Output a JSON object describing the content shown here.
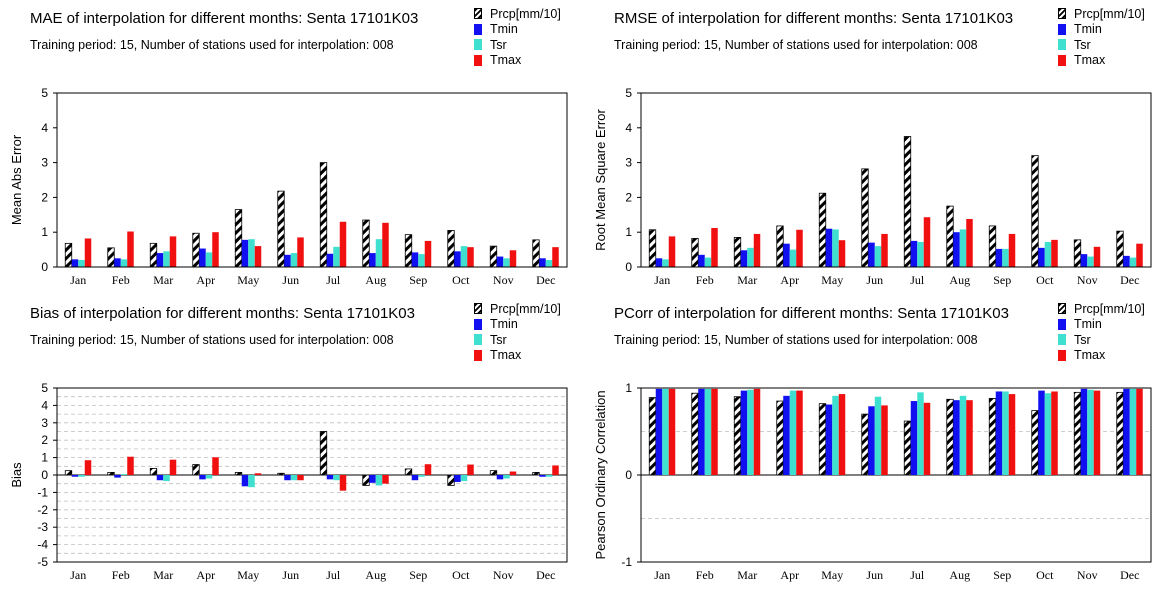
{
  "colors": {
    "Prcp[mm/10]": "hatch",
    "Tmin": "#1010f0",
    "Tsr": "#40e0d0",
    "Tmax": "#f01010"
  },
  "legend": [
    "Prcp[mm/10]",
    "Tmin",
    "Tsr",
    "Tmax"
  ],
  "chart_data": [
    {
      "type": "bar",
      "title": "MAE of interpolation for different months: Senta  17101K03",
      "subtitle": "Training period: 15, Number of stations used for interpolation: 008",
      "ylabel": "Mean Abs Error",
      "ylim": [
        0,
        5
      ],
      "yticks": [
        "0",
        "1",
        "2",
        "3",
        "4",
        "5"
      ],
      "grid": false,
      "categories": [
        "Jan",
        "Feb",
        "Mar",
        "Apr",
        "May",
        "Jun",
        "Jul",
        "Aug",
        "Sep",
        "Oct",
        "Nov",
        "Dec"
      ],
      "series": [
        {
          "name": "Prcp[mm/10]",
          "values": [
            0.68,
            0.55,
            0.68,
            0.97,
            1.65,
            2.18,
            3.0,
            1.35,
            0.93,
            1.05,
            0.6,
            0.78
          ]
        },
        {
          "name": "Tmin",
          "values": [
            0.22,
            0.25,
            0.4,
            0.53,
            0.78,
            0.35,
            0.38,
            0.4,
            0.42,
            0.45,
            0.3,
            0.25
          ]
        },
        {
          "name": "Tsr",
          "values": [
            0.2,
            0.22,
            0.45,
            0.42,
            0.8,
            0.4,
            0.58,
            0.8,
            0.37,
            0.6,
            0.25,
            0.2
          ]
        },
        {
          "name": "Tmax",
          "values": [
            0.82,
            1.02,
            0.88,
            1.0,
            0.6,
            0.85,
            1.3,
            1.27,
            0.75,
            0.57,
            0.48,
            0.57
          ]
        }
      ]
    },
    {
      "type": "bar",
      "title": "RMSE of interpolation for different months: Senta  17101K03",
      "subtitle": "Training period: 15, Number of stations used for interpolation: 008",
      "ylabel": "Root Mean Square Error",
      "ylim": [
        0,
        5
      ],
      "yticks": [
        "0",
        "1",
        "2",
        "3",
        "4",
        "5"
      ],
      "grid": false,
      "categories": [
        "Jan",
        "Feb",
        "Mar",
        "Apr",
        "May",
        "Jun",
        "Jul",
        "Aug",
        "Sep",
        "Oct",
        "Nov",
        "Dec"
      ],
      "series": [
        {
          "name": "Prcp[mm/10]",
          "values": [
            1.07,
            0.82,
            0.85,
            1.18,
            2.12,
            2.82,
            3.75,
            1.75,
            1.18,
            3.2,
            0.78,
            1.03
          ]
        },
        {
          "name": "Tmin",
          "values": [
            0.25,
            0.35,
            0.48,
            0.67,
            1.1,
            0.7,
            0.75,
            1.0,
            0.52,
            0.55,
            0.37,
            0.32
          ]
        },
        {
          "name": "Tsr",
          "values": [
            0.22,
            0.27,
            0.55,
            0.5,
            1.08,
            0.6,
            0.72,
            1.08,
            0.52,
            0.72,
            0.3,
            0.27
          ]
        },
        {
          "name": "Tmax",
          "values": [
            0.88,
            1.12,
            0.95,
            1.07,
            0.77,
            0.95,
            1.43,
            1.38,
            0.95,
            0.78,
            0.58,
            0.67
          ]
        }
      ]
    },
    {
      "type": "bar",
      "title": "Bias of interpolation for different months: Senta  17101K03",
      "subtitle": "Training period: 15, Number of stations used for interpolation: 008",
      "ylabel": "Bias",
      "ylim": [
        -5,
        5
      ],
      "yticks": [
        "-5",
        "-4",
        "-3",
        "-2",
        "-1",
        "0",
        "1",
        "2",
        "3",
        "4",
        "5"
      ],
      "grid": true,
      "categories": [
        "Jan",
        "Feb",
        "Mar",
        "Apr",
        "May",
        "Jun",
        "Jul",
        "Aug",
        "Sep",
        "Oct",
        "Nov",
        "Dec"
      ],
      "series": [
        {
          "name": "Prcp[mm/10]",
          "values": [
            0.25,
            0.15,
            0.38,
            0.6,
            0.15,
            0.1,
            2.5,
            -0.6,
            0.35,
            -0.6,
            0.25,
            0.15
          ]
        },
        {
          "name": "Tmin",
          "values": [
            -0.1,
            -0.15,
            -0.3,
            -0.25,
            -0.65,
            -0.3,
            -0.25,
            -0.45,
            -0.3,
            -0.4,
            -0.25,
            -0.1
          ]
        },
        {
          "name": "Tsr",
          "values": [
            -0.1,
            0.05,
            -0.35,
            -0.2,
            -0.7,
            -0.3,
            -0.3,
            -0.6,
            -0.1,
            -0.35,
            -0.2,
            -0.1
          ]
        },
        {
          "name": "Tmax",
          "values": [
            0.85,
            1.05,
            0.88,
            1.02,
            0.1,
            -0.3,
            -0.9,
            -0.5,
            0.62,
            0.6,
            0.2,
            0.55
          ]
        }
      ]
    },
    {
      "type": "bar",
      "title": "PCorr of interpolation for different months: Senta  17101K03",
      "subtitle": "Training period: 15, Number of stations used for interpolation: 008",
      "ylabel": "Pearson Ordinary Correlation",
      "ylim": [
        -1,
        1
      ],
      "yticks": [
        "-1",
        "0",
        "1"
      ],
      "grid": true,
      "categories": [
        "Jan",
        "Feb",
        "Mar",
        "Apr",
        "May",
        "Jun",
        "Jul",
        "Aug",
        "Sep",
        "Oct",
        "Nov",
        "Dec"
      ],
      "series": [
        {
          "name": "Prcp[mm/10]",
          "values": [
            0.89,
            0.94,
            0.9,
            0.85,
            0.82,
            0.7,
            0.62,
            0.87,
            0.88,
            0.74,
            0.95,
            0.95
          ]
        },
        {
          "name": "Tmin",
          "values": [
            0.99,
            0.99,
            0.97,
            0.91,
            0.81,
            0.79,
            0.85,
            0.86,
            0.96,
            0.97,
            0.99,
            0.99
          ]
        },
        {
          "name": "Tsr",
          "values": [
            0.99,
            0.99,
            0.98,
            0.97,
            0.91,
            0.9,
            0.95,
            0.91,
            0.96,
            0.94,
            0.98,
            0.99
          ]
        },
        {
          "name": "Tmax",
          "values": [
            0.99,
            0.99,
            0.99,
            0.97,
            0.93,
            0.8,
            0.83,
            0.86,
            0.93,
            0.96,
            0.97,
            0.99
          ]
        }
      ]
    }
  ]
}
